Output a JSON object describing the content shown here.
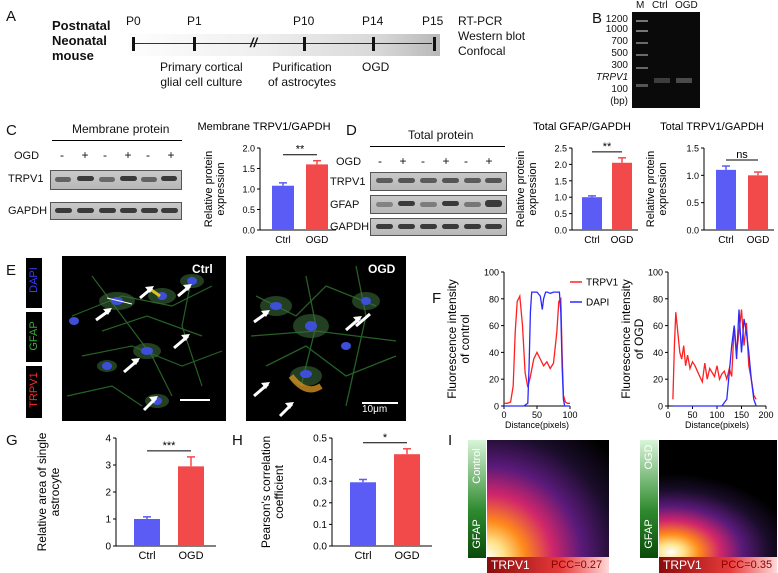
{
  "panelA": {
    "label": "A",
    "source": "Postnatal\nNeonatal\nmouse",
    "timepoints": [
      "P0",
      "P1",
      "P10",
      "P14",
      "P15"
    ],
    "culture": "Primary cortical\nglial cell culture",
    "purify": "Purification\nof astrocytes",
    "ogd": "OGD",
    "methods": "RT-PCR\nWestern blot\nConfocal"
  },
  "panelB": {
    "label": "B",
    "lanes": [
      "M",
      "Ctrl",
      "OGD"
    ],
    "ladder": [
      "1200",
      "1000",
      "700",
      "500",
      "300",
      "100"
    ],
    "gene": "TRPV1",
    "unit": "(bp)"
  },
  "panelC": {
    "label": "C",
    "blot_title": "Membrane protein",
    "ogd_row": "OGD",
    "signs": [
      "-",
      "+",
      "-",
      "+",
      "-",
      "+"
    ],
    "rows": [
      "TRPV1",
      "GAPDH"
    ]
  },
  "panelD": {
    "label": "D",
    "blot_title": "Total protein",
    "ogd_row": "OGD",
    "signs": [
      "-",
      "+",
      "-",
      "+",
      "-",
      "+"
    ],
    "rows": [
      "TRPV1",
      "GFAP",
      "GAPDH"
    ]
  },
  "panelE": {
    "label": "E",
    "stains": [
      "DAPI",
      "GFAP",
      "TRPV1"
    ],
    "ctrl": "Ctrl",
    "ogd": "OGD",
    "scale": "10μm"
  },
  "panelF": {
    "label": "F"
  },
  "panelG": {
    "label": "G"
  },
  "panelH": {
    "label": "H"
  },
  "panelI": {
    "label": "I",
    "left": {
      "cond": "Control",
      "y": "GFAP",
      "x": "TRPV1",
      "pcc": "PCC=0.27"
    },
    "right": {
      "cond": "OGD",
      "y": "GFAP",
      "x": "TRPV1",
      "pcc": "PCC=0.35"
    }
  },
  "colors": {
    "ctrl": "#5b5bf5",
    "ogd": "#f24a4a",
    "dapi": "#2a2aff",
    "gfap": "#33b033",
    "trpv1": "#ff2020"
  },
  "chart_data": [
    {
      "id": "C",
      "type": "bar",
      "title": "Membrane TRPV1/GAPDH",
      "ylabel": "Relative protein\nexpression",
      "categories": [
        "Ctrl",
        "OGD"
      ],
      "values": [
        1.08,
        1.6
      ],
      "errors": [
        0.07,
        0.09
      ],
      "ylim": [
        0,
        2.0
      ],
      "yticks": [
        "0.0",
        "0.5",
        "1.0",
        "1.5",
        "2.0"
      ],
      "sig": "**"
    },
    {
      "id": "D1",
      "type": "bar",
      "title": "Total GFAP/GAPDH",
      "ylabel": "Relative protein\nexpression",
      "categories": [
        "Ctrl",
        "OGD"
      ],
      "values": [
        1.0,
        2.05
      ],
      "errors": [
        0.04,
        0.15
      ],
      "ylim": [
        0,
        2.5
      ],
      "yticks": [
        "0.0",
        "0.5",
        "1.0",
        "1.5",
        "2.0",
        "2.5"
      ],
      "sig": "**"
    },
    {
      "id": "D2",
      "type": "bar",
      "title": "Total TRPV1/GAPDH",
      "ylabel": "Relative protein\nexpression",
      "categories": [
        "Ctrl",
        "OGD"
      ],
      "values": [
        1.1,
        1.0
      ],
      "errors": [
        0.07,
        0.06
      ],
      "ylim": [
        0,
        1.5
      ],
      "yticks": [
        "0.0",
        "0.5",
        "1.0",
        "1.5"
      ],
      "sig": "ns"
    },
    {
      "id": "G",
      "type": "bar",
      "ylabel": "Relative area of single\nastrocyte",
      "categories": [
        "Ctrl",
        "OGD"
      ],
      "values": [
        1.0,
        2.95
      ],
      "errors": [
        0.08,
        0.35
      ],
      "ylim": [
        0,
        4
      ],
      "yticks": [
        "0",
        "1",
        "2",
        "3",
        "4"
      ],
      "sig": "***"
    },
    {
      "id": "H",
      "type": "bar",
      "ylabel": "Pearson's correlation\ncoefficient",
      "categories": [
        "Ctrl",
        "OGD"
      ],
      "values": [
        0.295,
        0.425
      ],
      "errors": [
        0.013,
        0.025
      ],
      "ylim": [
        0,
        0.5
      ],
      "yticks": [
        "0.0",
        "0.1",
        "0.2",
        "0.3",
        "0.4",
        "0.5"
      ],
      "sig": "*"
    },
    {
      "id": "F1",
      "type": "line",
      "ylabel": "Fluorescence intensity\nof control",
      "xlabel": "Distance(pixels)",
      "ylim": [
        0,
        100
      ],
      "xlim": [
        0,
        100
      ],
      "yticks": [
        "0",
        "20",
        "40",
        "60",
        "80",
        "100"
      ],
      "xticks": [
        "0",
        "50",
        "100"
      ],
      "series": [
        {
          "name": "TRPV1",
          "x": [
            0,
            5,
            10,
            14,
            17,
            20,
            24,
            28,
            32,
            36,
            40,
            45,
            50,
            55,
            60,
            65,
            70,
            75,
            80,
            83,
            86,
            88,
            90,
            93,
            96,
            100
          ],
          "y": [
            2,
            2,
            3,
            15,
            55,
            78,
            82,
            60,
            25,
            14,
            22,
            35,
            40,
            35,
            30,
            33,
            28,
            32,
            55,
            78,
            80,
            40,
            8,
            3,
            2,
            2
          ]
        },
        {
          "name": "DAPI",
          "x": [
            0,
            30,
            36,
            38,
            40,
            42,
            45,
            50,
            55,
            58,
            60,
            63,
            66,
            70,
            75,
            80,
            84,
            86,
            88,
            90,
            92,
            96,
            100
          ],
          "y": [
            0,
            0,
            2,
            30,
            70,
            85,
            85,
            85,
            82,
            72,
            80,
            85,
            85,
            84,
            85,
            85,
            85,
            70,
            30,
            5,
            0,
            0,
            0
          ]
        }
      ]
    },
    {
      "id": "F2",
      "type": "line",
      "ylabel": "Fluorescence intensity\nof OGD",
      "xlabel": "Distance(pixels)",
      "ylim": [
        0,
        100
      ],
      "xlim": [
        0,
        200
      ],
      "yticks": [
        "0",
        "20",
        "40",
        "60",
        "80",
        "100"
      ],
      "xticks": [
        "0",
        "50",
        "100",
        "150",
        "200"
      ],
      "series": [
        {
          "name": "TRPV1",
          "x": [
            10,
            13,
            16,
            20,
            24,
            28,
            32,
            36,
            40,
            45,
            50,
            55,
            60,
            65,
            70,
            75,
            80,
            85,
            90,
            95,
            100,
            105,
            110,
            115,
            120,
            125,
            130,
            135,
            140,
            145,
            150,
            155,
            160,
            165,
            170,
            175,
            180
          ],
          "y": [
            5,
            45,
            70,
            55,
            40,
            35,
            45,
            30,
            38,
            28,
            33,
            30,
            26,
            22,
            18,
            32,
            20,
            28,
            25,
            22,
            30,
            20,
            24,
            26,
            20,
            28,
            22,
            60,
            40,
            55,
            72,
            45,
            62,
            30,
            20,
            8,
            5
          ]
        },
        {
          "name": "DAPI",
          "x": [
            10,
            60,
            100,
            110,
            120,
            125,
            130,
            135,
            140,
            145,
            150,
            155,
            160,
            165,
            170,
            175,
            180
          ],
          "y": [
            0,
            0,
            0,
            0,
            5,
            25,
            45,
            60,
            35,
            72,
            40,
            65,
            55,
            40,
            20,
            5,
            0
          ]
        }
      ]
    }
  ]
}
